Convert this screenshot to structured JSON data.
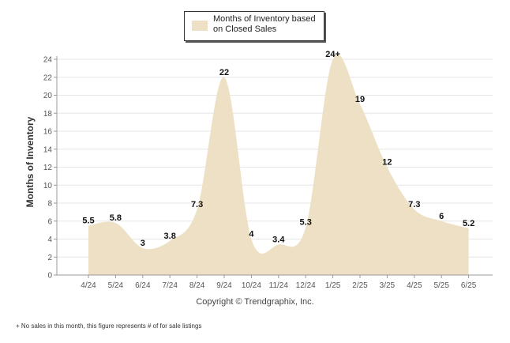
{
  "legend": {
    "label": "Months of Inventory based on Closed Sales"
  },
  "footnote": "+ No sales in this month, this figure represents # of for sale listings",
  "copyright": "Copyright © Trendgraphix, Inc.",
  "colors": {
    "area": "#ede0c4",
    "grid": "#e6e6e6",
    "axis": "#999999"
  },
  "chart_data": {
    "type": "area",
    "ylabel": "Months of Inventory",
    "xlabel": "",
    "ylim": [
      0,
      24
    ],
    "yticks": [
      0,
      2,
      4,
      6,
      8,
      10,
      12,
      14,
      16,
      18,
      20,
      22,
      24
    ],
    "grid": true,
    "legend_position": "top-center",
    "x": [
      "4/24",
      "5/24",
      "6/24",
      "7/24",
      "8/24",
      "9/24",
      "10/24",
      "11/24",
      "12/24",
      "1/25",
      "2/25",
      "3/25",
      "4/25",
      "5/25",
      "6/25"
    ],
    "series": [
      {
        "name": "Months of Inventory based on Closed Sales",
        "values": [
          5.5,
          5.8,
          3,
          3.8,
          7.3,
          22,
          4,
          3.4,
          5.3,
          24,
          19,
          12,
          7.3,
          6,
          5.2
        ],
        "labels": [
          "5.5",
          "5.8",
          "3",
          "3.8",
          "7.3",
          "22",
          "4",
          "3.4",
          "5.3",
          "24+",
          "19",
          "12",
          "7.3",
          "6",
          "5.2"
        ]
      }
    ]
  }
}
